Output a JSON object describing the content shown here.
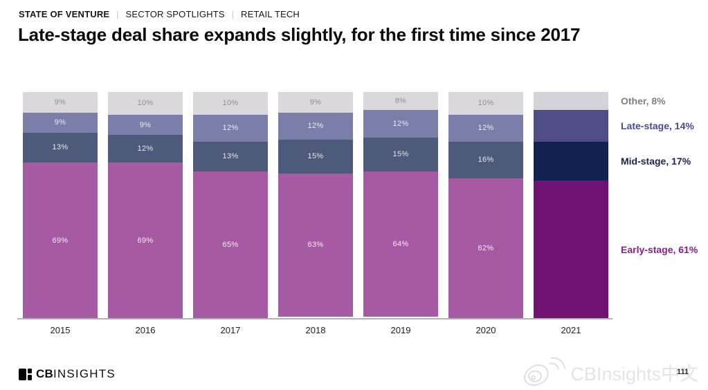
{
  "header": {
    "breadcrumb": [
      "STATE OF VENTURE",
      "SECTOR SPOTLIGHTS",
      "RETAIL TECH"
    ],
    "separator": "|",
    "title": "Late-stage deal share expands slightly, for the first time since 2017"
  },
  "chart_data": {
    "type": "bar",
    "stacked": true,
    "unit": "percent",
    "categories": [
      "2015",
      "2016",
      "2017",
      "2018",
      "2019",
      "2020",
      "2021"
    ],
    "series": [
      {
        "name": "Early-stage",
        "values": [
          69,
          69,
          65,
          63,
          64,
          62,
          61
        ],
        "color": "#a55aa3",
        "highlight_color": "#701174",
        "in_bar_label_color": "rgba(255,255,255,0.88)",
        "legend_text_color": "#8b1a8c"
      },
      {
        "name": "Mid-stage",
        "values": [
          13,
          12,
          13,
          15,
          15,
          16,
          17
        ],
        "color": "#4e5a79",
        "highlight_color": "#122150",
        "in_bar_label_color": "rgba(255,255,255,0.85)",
        "legend_text_color": "#1b2450"
      },
      {
        "name": "Late-stage",
        "values": [
          9,
          9,
          12,
          12,
          12,
          12,
          14
        ],
        "color": "#7a7ea8",
        "highlight_color": "#4e4d87",
        "in_bar_label_color": "rgba(255,255,255,0.85)",
        "legend_text_color": "#474b8c"
      },
      {
        "name": "Other",
        "values": [
          9,
          10,
          10,
          9,
          8,
          10,
          8
        ],
        "color": "#dbd8dc",
        "highlight_color": "#d5d3da",
        "in_bar_label_color": "#8e8d96",
        "legend_text_color": "#7f7f7f"
      }
    ],
    "highlighted_category": "2021",
    "legend": [
      {
        "label": "Other, 8%"
      },
      {
        "label": "Late-stage, 14%"
      },
      {
        "label": "Mid-stage, 17%"
      },
      {
        "label": "Early-stage, 61%"
      }
    ],
    "ylim": [
      0,
      100
    ],
    "grid": false,
    "legend_position": "right"
  },
  "footer": {
    "logo_cb": "CB",
    "logo_insights": "INSIGHTS",
    "watermark": "CBInsights中文",
    "page_number": "111"
  }
}
